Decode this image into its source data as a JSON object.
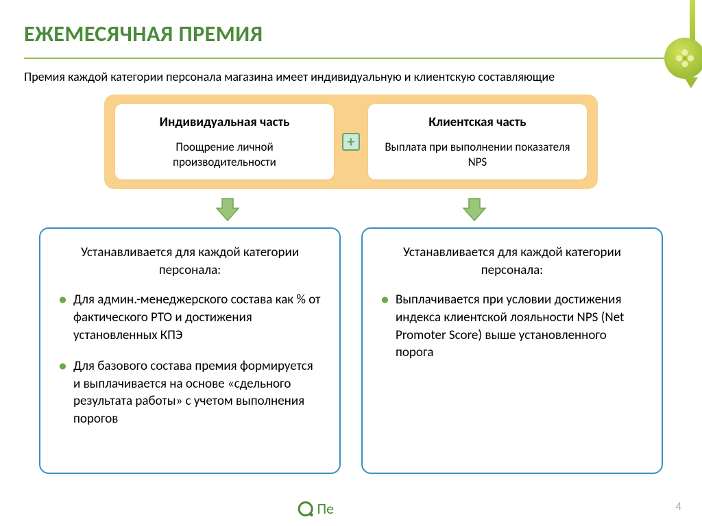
{
  "title": {
    "text": "ЕЖЕМЕСЯЧНАЯ ПРЕМИЯ",
    "color": "#4a8b3a"
  },
  "underline_color": "#8fbf4a",
  "subtitle": "Премия каждой категории персонала магазина имеет индивидуальную и клиентскую составляющие",
  "top_box": {
    "background": "#f9d18b",
    "left": {
      "title": "Индивидуальная часть",
      "desc": "Поощрение личной производительности"
    },
    "right": {
      "title": "Клиентская часть",
      "desc": "Выплата при выполнении показателя NPS"
    },
    "plus_symbol": "+"
  },
  "arrow": {
    "fill": "#9cc57a",
    "stroke": "#6aa84f"
  },
  "details": {
    "border_color": "#3a8fbf",
    "bullet_color": "#6aa84f",
    "left": {
      "head": "Устанавливается для каждой категории персонала:",
      "items": [
        "Для админ.-менеджерского состава как % от фактического РТО и достижения установленных КПЭ",
        "Для базового состава премия формируется и выплачивается на основе «сдельного результата работы» с учетом выполнения порогов"
      ]
    },
    "right": {
      "head": "Устанавливается для каждой категории персонала:",
      "items": [
        "Выплачивается при условии достижения индекса клиентской лояльности NPS (Net Promoter Score) выше установленного порога"
      ]
    }
  },
  "footer": {
    "brand_fragment": "Пе",
    "page": "4"
  }
}
